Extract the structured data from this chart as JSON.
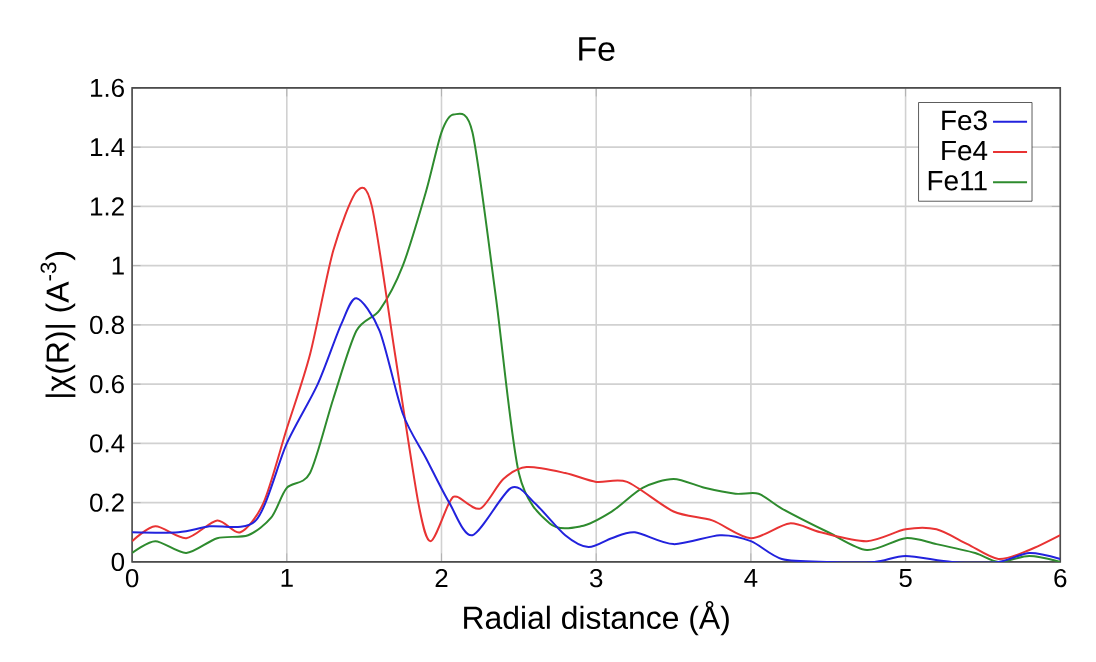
{
  "chart_data": {
    "type": "line",
    "title": "Fe",
    "xlabel": "Radial distance   (Å)",
    "ylabel": "|χ(R)|   (A$^{-3}$)",
    "xlim": [
      0,
      6
    ],
    "xticks": [
      0,
      1,
      2,
      3,
      4,
      5,
      6
    ],
    "ylim": [
      0,
      1.6
    ],
    "yticks": [
      0,
      0.2,
      0.4,
      0.6,
      0.8,
      1,
      1.2,
      1.4,
      1.6
    ],
    "grid": true,
    "legend": "top right",
    "series": [
      {
        "name": "Fe3",
        "color": "#2222dd",
        "x": [
          0,
          0.3,
          0.5,
          0.8,
          1.0,
          1.2,
          1.35,
          1.45,
          1.6,
          1.75,
          1.9,
          2.05,
          2.2,
          2.45,
          2.6,
          2.8,
          2.95,
          3.1,
          3.25,
          3.5,
          3.8,
          4.0,
          4.2,
          4.5,
          4.8,
          5.0,
          5.3,
          5.6,
          5.8,
          6.0
        ],
        "values": [
          0.1,
          0.1,
          0.12,
          0.14,
          0.4,
          0.6,
          0.8,
          0.89,
          0.78,
          0.5,
          0.35,
          0.2,
          0.09,
          0.25,
          0.2,
          0.09,
          0.05,
          0.08,
          0.1,
          0.06,
          0.09,
          0.07,
          0.01,
          0.0,
          0.0,
          0.02,
          0.0,
          0.0,
          0.03,
          0.01
        ]
      },
      {
        "name": "Fe4",
        "color": "#e83333",
        "x": [
          0,
          0.15,
          0.35,
          0.55,
          0.7,
          0.85,
          1.0,
          1.15,
          1.3,
          1.45,
          1.55,
          1.7,
          1.85,
          1.93,
          2.05,
          2.1,
          2.25,
          2.4,
          2.55,
          2.8,
          3.0,
          3.2,
          3.5,
          3.75,
          4.0,
          4.25,
          4.45,
          4.75,
          5.0,
          5.2,
          5.4,
          5.6,
          5.8,
          6.0
        ],
        "values": [
          0.07,
          0.12,
          0.08,
          0.14,
          0.1,
          0.2,
          0.45,
          0.7,
          1.05,
          1.25,
          1.2,
          0.7,
          0.2,
          0.07,
          0.2,
          0.22,
          0.18,
          0.28,
          0.32,
          0.3,
          0.27,
          0.27,
          0.17,
          0.14,
          0.08,
          0.13,
          0.1,
          0.07,
          0.11,
          0.11,
          0.06,
          0.01,
          0.04,
          0.09
        ]
      },
      {
        "name": "Fe11",
        "color": "#2e8b2e",
        "x": [
          0,
          0.15,
          0.35,
          0.55,
          0.75,
          0.9,
          1.0,
          1.15,
          1.3,
          1.45,
          1.6,
          1.75,
          1.9,
          2.0,
          2.08,
          2.2,
          2.35,
          2.5,
          2.7,
          2.9,
          3.1,
          3.3,
          3.5,
          3.7,
          3.9,
          4.05,
          4.2,
          4.5,
          4.75,
          5.0,
          5.2,
          5.45,
          5.6,
          5.8,
          6.0
        ],
        "values": [
          0.03,
          0.07,
          0.03,
          0.08,
          0.09,
          0.15,
          0.25,
          0.3,
          0.55,
          0.78,
          0.85,
          1.0,
          1.25,
          1.45,
          1.51,
          1.45,
          0.9,
          0.3,
          0.13,
          0.12,
          0.17,
          0.25,
          0.28,
          0.25,
          0.23,
          0.23,
          0.18,
          0.1,
          0.04,
          0.08,
          0.06,
          0.03,
          0.0,
          0.02,
          0.0
        ]
      }
    ]
  }
}
